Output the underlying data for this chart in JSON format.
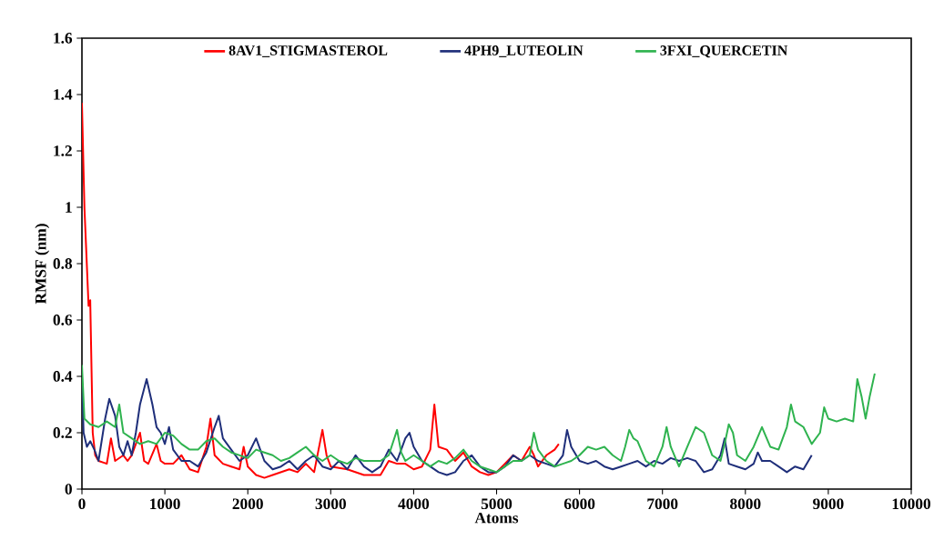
{
  "chart_data": {
    "type": "line",
    "xlabel": "Atoms",
    "ylabel": "RMSF (nm)",
    "xlim": [
      0,
      10000
    ],
    "ylim": [
      0,
      1.6
    ],
    "xticks": [
      0,
      1000,
      2000,
      3000,
      4000,
      5000,
      6000,
      7000,
      8000,
      9000,
      10000
    ],
    "yticks": [
      0,
      0.2,
      0.4,
      0.6,
      0.8,
      1,
      1.2,
      1.4,
      1.6
    ],
    "grid": false,
    "legend": "top",
    "marker": "none",
    "line_style": "solid",
    "series": [
      {
        "name": "8AV1_STIGMASTEROL",
        "color": "#ff0000",
        "x": [
          0,
          30,
          80,
          100,
          130,
          160,
          200,
          300,
          350,
          400,
          500,
          550,
          600,
          700,
          750,
          800,
          900,
          950,
          1000,
          1100,
          1200,
          1300,
          1400,
          1500,
          1550,
          1600,
          1700,
          1800,
          1900,
          1950,
          2000,
          2100,
          2200,
          2300,
          2400,
          2500,
          2600,
          2700,
          2800,
          2900,
          2950,
          3000,
          3200,
          3400,
          3600,
          3700,
          3800,
          3900,
          4000,
          4100,
          4200,
          4250,
          4300,
          4400,
          4500,
          4600,
          4700,
          4800,
          4900,
          5000,
          5100,
          5200,
          5300,
          5400,
          5450,
          5500,
          5600,
          5700,
          5750
        ],
        "values": [
          1.37,
          1.0,
          0.65,
          0.67,
          0.2,
          0.12,
          0.1,
          0.09,
          0.18,
          0.1,
          0.12,
          0.1,
          0.12,
          0.2,
          0.1,
          0.09,
          0.16,
          0.1,
          0.09,
          0.09,
          0.12,
          0.07,
          0.06,
          0.15,
          0.25,
          0.12,
          0.09,
          0.08,
          0.07,
          0.15,
          0.08,
          0.05,
          0.04,
          0.05,
          0.06,
          0.07,
          0.06,
          0.09,
          0.06,
          0.21,
          0.12,
          0.08,
          0.07,
          0.05,
          0.05,
          0.1,
          0.09,
          0.09,
          0.07,
          0.08,
          0.14,
          0.3,
          0.15,
          0.14,
          0.1,
          0.13,
          0.08,
          0.06,
          0.05,
          0.06,
          0.09,
          0.12,
          0.1,
          0.15,
          0.12,
          0.08,
          0.12,
          0.14,
          0.16
        ]
      },
      {
        "name": "4PH9_LUTEOLIN",
        "color": "#1f2f7a",
        "x": [
          0,
          20,
          60,
          100,
          150,
          200,
          280,
          330,
          400,
          450,
          500,
          550,
          600,
          650,
          700,
          780,
          850,
          900,
          950,
          1000,
          1050,
          1100,
          1200,
          1300,
          1400,
          1500,
          1600,
          1650,
          1700,
          1800,
          1900,
          2000,
          2100,
          2200,
          2300,
          2400,
          2500,
          2600,
          2700,
          2800,
          2900,
          3000,
          3100,
          3200,
          3300,
          3400,
          3500,
          3600,
          3700,
          3800,
          3900,
          3950,
          4000,
          4100,
          4200,
          4300,
          4400,
          4500,
          4600,
          4700,
          4800,
          4900,
          5000,
          5100,
          5200,
          5300,
          5400,
          5500,
          5600,
          5700,
          5800,
          5850,
          5900,
          6000,
          6100,
          6200,
          6300,
          6400,
          6500,
          6600,
          6700,
          6800,
          6900,
          7000,
          7100,
          7200,
          7300,
          7400,
          7500,
          7600,
          7700,
          7750,
          7800,
          7900,
          8000,
          8100,
          8150,
          8200,
          8300,
          8400,
          8500,
          8600,
          8700,
          8800
        ],
        "values": [
          0.4,
          0.2,
          0.15,
          0.17,
          0.14,
          0.1,
          0.25,
          0.32,
          0.26,
          0.15,
          0.12,
          0.17,
          0.12,
          0.2,
          0.3,
          0.39,
          0.3,
          0.22,
          0.2,
          0.16,
          0.22,
          0.14,
          0.1,
          0.1,
          0.08,
          0.13,
          0.22,
          0.26,
          0.18,
          0.14,
          0.1,
          0.12,
          0.18,
          0.1,
          0.07,
          0.08,
          0.1,
          0.07,
          0.1,
          0.12,
          0.08,
          0.07,
          0.1,
          0.07,
          0.12,
          0.08,
          0.06,
          0.08,
          0.14,
          0.1,
          0.18,
          0.2,
          0.15,
          0.1,
          0.08,
          0.06,
          0.05,
          0.06,
          0.1,
          0.12,
          0.08,
          0.06,
          0.06,
          0.08,
          0.12,
          0.1,
          0.12,
          0.1,
          0.09,
          0.08,
          0.12,
          0.21,
          0.15,
          0.1,
          0.09,
          0.1,
          0.08,
          0.07,
          0.08,
          0.09,
          0.1,
          0.08,
          0.1,
          0.09,
          0.11,
          0.1,
          0.11,
          0.1,
          0.06,
          0.07,
          0.12,
          0.18,
          0.09,
          0.08,
          0.07,
          0.09,
          0.13,
          0.1,
          0.1,
          0.08,
          0.06,
          0.08,
          0.07,
          0.12
        ]
      },
      {
        "name": "3FXI_QUERCETIN",
        "color": "#2fb34f",
        "x": [
          0,
          30,
          100,
          200,
          300,
          400,
          450,
          500,
          600,
          700,
          800,
          900,
          1000,
          1100,
          1200,
          1300,
          1400,
          1500,
          1600,
          1700,
          1800,
          1900,
          2000,
          2100,
          2200,
          2300,
          2400,
          2500,
          2600,
          2700,
          2800,
          2900,
          3000,
          3100,
          3200,
          3300,
          3400,
          3500,
          3600,
          3700,
          3800,
          3850,
          3900,
          4000,
          4100,
          4200,
          4300,
          4400,
          4500,
          4600,
          4700,
          4800,
          4900,
          5000,
          5100,
          5200,
          5300,
          5400,
          5450,
          5500,
          5600,
          5700,
          5800,
          5900,
          6000,
          6100,
          6200,
          6300,
          6400,
          6500,
          6550,
          6600,
          6650,
          6700,
          6800,
          6900,
          7000,
          7050,
          7100,
          7200,
          7300,
          7400,
          7500,
          7600,
          7700,
          7750,
          7800,
          7850,
          7900,
          8000,
          8100,
          8200,
          8300,
          8400,
          8500,
          8550,
          8600,
          8700,
          8800,
          8900,
          8950,
          9000,
          9100,
          9200,
          9300,
          9350,
          9400,
          9450,
          9500,
          9560
        ],
        "values": [
          0.44,
          0.25,
          0.23,
          0.22,
          0.24,
          0.22,
          0.3,
          0.2,
          0.18,
          0.16,
          0.17,
          0.16,
          0.2,
          0.19,
          0.16,
          0.14,
          0.14,
          0.17,
          0.18,
          0.15,
          0.13,
          0.12,
          0.11,
          0.14,
          0.13,
          0.12,
          0.1,
          0.11,
          0.13,
          0.15,
          0.12,
          0.1,
          0.12,
          0.1,
          0.09,
          0.11,
          0.1,
          0.1,
          0.1,
          0.12,
          0.21,
          0.13,
          0.1,
          0.12,
          0.1,
          0.08,
          0.1,
          0.09,
          0.11,
          0.14,
          0.1,
          0.08,
          0.07,
          0.06,
          0.08,
          0.1,
          0.1,
          0.12,
          0.2,
          0.14,
          0.1,
          0.08,
          0.09,
          0.1,
          0.12,
          0.15,
          0.14,
          0.15,
          0.12,
          0.1,
          0.15,
          0.21,
          0.18,
          0.17,
          0.1,
          0.08,
          0.15,
          0.22,
          0.15,
          0.08,
          0.15,
          0.22,
          0.2,
          0.12,
          0.1,
          0.16,
          0.23,
          0.2,
          0.12,
          0.1,
          0.15,
          0.22,
          0.15,
          0.14,
          0.22,
          0.3,
          0.24,
          0.22,
          0.16,
          0.2,
          0.29,
          0.25,
          0.24,
          0.25,
          0.24,
          0.39,
          0.33,
          0.25,
          0.33,
          0.41
        ]
      }
    ]
  }
}
